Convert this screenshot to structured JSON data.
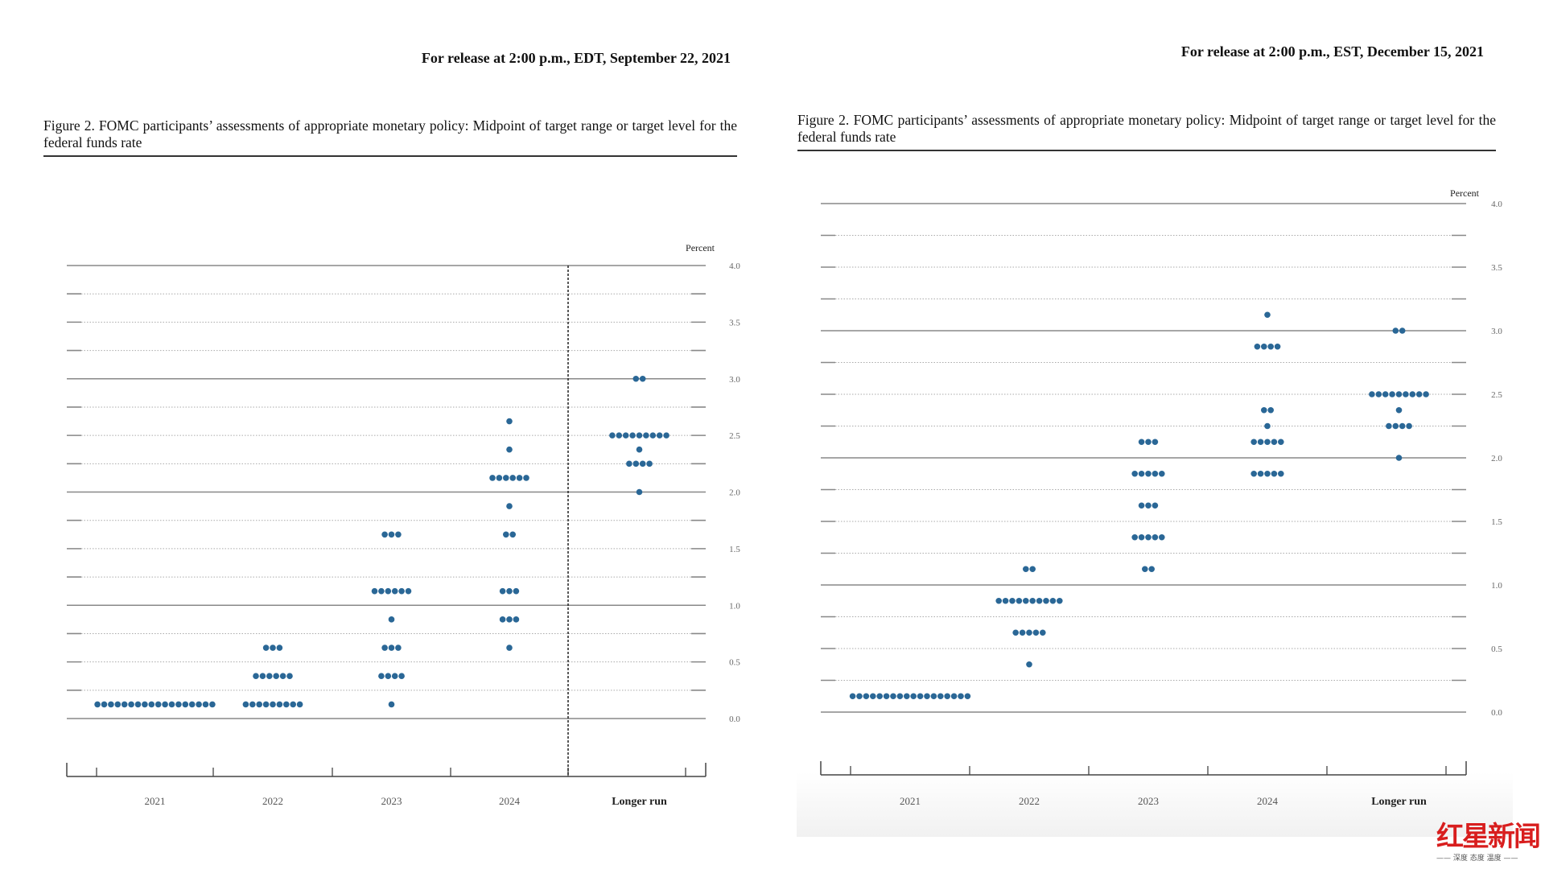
{
  "panels": [
    {
      "release": "For release at 2:00 p.m., EDT, September 22, 2021",
      "figure_title": "Figure 2.  FOMC participants’ assessments of appropriate monetary policy:  Midpoint of target range or target level for the federal funds rate"
    },
    {
      "release": "For release at 2:00 p.m., EST, December 15, 2021",
      "figure_title": "Figure 2.  FOMC participants’ assessments of appropriate monetary policy:  Midpoint of target range or target level for the federal funds rate"
    }
  ],
  "logo": {
    "name": "红星新闻",
    "tagline": "—— 深度 态度 温度 ——"
  },
  "chart_data": [
    {
      "type": "scatter",
      "subtype": "dot-plot",
      "ylabel": "Percent",
      "ylim": [
        0,
        4.0
      ],
      "yticks": [
        "0.0",
        "0.5",
        "1.0",
        "1.5",
        "2.0",
        "2.5",
        "3.0",
        "3.5",
        "4.0"
      ],
      "categories": [
        "2021",
        "2022",
        "2023",
        "2024",
        "Longer run"
      ],
      "longer_run_separator": true,
      "dot_color": "#2a6796",
      "columns": [
        {
          "category": "2021",
          "dots": [
            {
              "y": 0.125,
              "count": 18
            }
          ]
        },
        {
          "category": "2022",
          "dots": [
            {
              "y": 0.125,
              "count": 9
            },
            {
              "y": 0.375,
              "count": 6
            },
            {
              "y": 0.625,
              "count": 3
            }
          ]
        },
        {
          "category": "2023",
          "dots": [
            {
              "y": 0.125,
              "count": 1
            },
            {
              "y": 0.375,
              "count": 4
            },
            {
              "y": 0.625,
              "count": 3
            },
            {
              "y": 0.875,
              "count": 1
            },
            {
              "y": 1.125,
              "count": 6
            },
            {
              "y": 1.625,
              "count": 3
            }
          ]
        },
        {
          "category": "2024",
          "dots": [
            {
              "y": 0.625,
              "count": 1
            },
            {
              "y": 0.875,
              "count": 3
            },
            {
              "y": 1.125,
              "count": 3
            },
            {
              "y": 1.625,
              "count": 2
            },
            {
              "y": 1.875,
              "count": 1
            },
            {
              "y": 2.125,
              "count": 6
            },
            {
              "y": 2.375,
              "count": 1
            },
            {
              "y": 2.625,
              "count": 1
            }
          ]
        },
        {
          "category": "Longer run",
          "dots": [
            {
              "y": 2.0,
              "count": 1
            },
            {
              "y": 2.25,
              "count": 4
            },
            {
              "y": 2.375,
              "count": 1
            },
            {
              "y": 2.5,
              "count": 9
            },
            {
              "y": 3.0,
              "count": 2
            }
          ]
        }
      ]
    },
    {
      "type": "scatter",
      "subtype": "dot-plot",
      "ylabel": "Percent",
      "ylim": [
        0,
        4.0
      ],
      "yticks": [
        "0.0",
        "0.5",
        "1.0",
        "1.5",
        "2.0",
        "2.5",
        "3.0",
        "3.5",
        "4.0"
      ],
      "categories": [
        "2021",
        "2022",
        "2023",
        "2024",
        "Longer run"
      ],
      "longer_run_separator": false,
      "dot_color": "#2a6796",
      "columns": [
        {
          "category": "2021",
          "dots": [
            {
              "y": 0.125,
              "count": 18
            }
          ]
        },
        {
          "category": "2022",
          "dots": [
            {
              "y": 0.375,
              "count": 1
            },
            {
              "y": 0.625,
              "count": 5
            },
            {
              "y": 0.875,
              "count": 10
            },
            {
              "y": 1.125,
              "count": 2
            }
          ]
        },
        {
          "category": "2023",
          "dots": [
            {
              "y": 1.125,
              "count": 2
            },
            {
              "y": 1.375,
              "count": 5
            },
            {
              "y": 1.625,
              "count": 3
            },
            {
              "y": 1.875,
              "count": 5
            },
            {
              "y": 2.125,
              "count": 3
            }
          ]
        },
        {
          "category": "2024",
          "dots": [
            {
              "y": 1.875,
              "count": 5
            },
            {
              "y": 2.125,
              "count": 5
            },
            {
              "y": 2.25,
              "count": 1
            },
            {
              "y": 2.375,
              "count": 2
            },
            {
              "y": 2.875,
              "count": 4
            },
            {
              "y": 3.125,
              "count": 1
            }
          ]
        },
        {
          "category": "Longer run",
          "dots": [
            {
              "y": 2.0,
              "count": 1
            },
            {
              "y": 2.25,
              "count": 4
            },
            {
              "y": 2.375,
              "count": 1
            },
            {
              "y": 2.5,
              "count": 9
            },
            {
              "y": 3.0,
              "count": 2
            }
          ]
        }
      ]
    }
  ]
}
